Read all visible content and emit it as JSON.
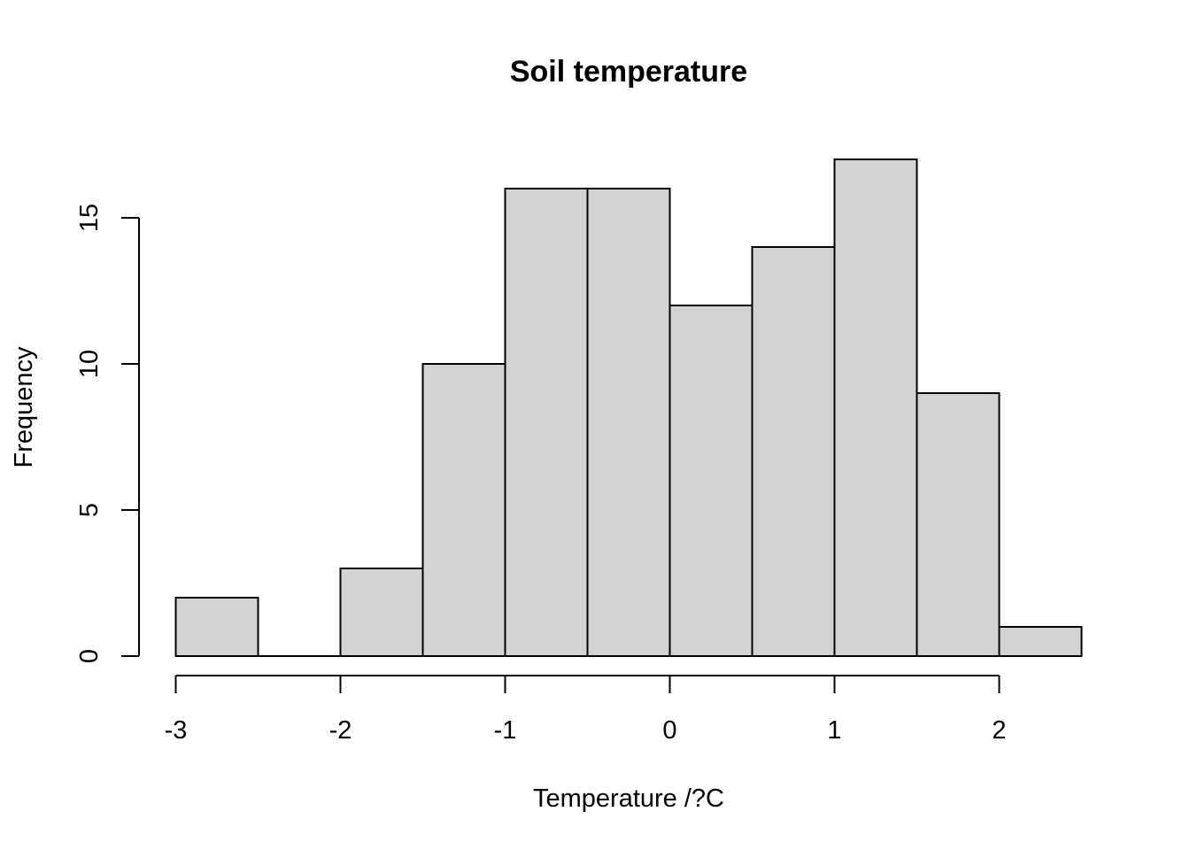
{
  "chart_data": {
    "type": "bar",
    "subtype": "histogram",
    "title": "Soil temperature",
    "xlabel": "Temperature /?C",
    "ylabel": "Frequency",
    "bins": [
      {
        "start": -3.0,
        "end": -2.5,
        "count": 2
      },
      {
        "start": -2.5,
        "end": -2.0,
        "count": 0
      },
      {
        "start": -2.0,
        "end": -1.5,
        "count": 3
      },
      {
        "start": -1.5,
        "end": -1.0,
        "count": 10
      },
      {
        "start": -1.0,
        "end": -0.5,
        "count": 16
      },
      {
        "start": -0.5,
        "end": 0.0,
        "count": 16
      },
      {
        "start": 0.0,
        "end": 0.5,
        "count": 12
      },
      {
        "start": 0.5,
        "end": 1.0,
        "count": 14
      },
      {
        "start": 1.0,
        "end": 1.5,
        "count": 17
      },
      {
        "start": 1.5,
        "end": 2.0,
        "count": 9
      },
      {
        "start": 2.0,
        "end": 2.5,
        "count": 1
      }
    ],
    "x_ticks": [
      "-3",
      "-2",
      "-1",
      "0",
      "1",
      "2"
    ],
    "y_ticks": [
      "0",
      "5",
      "10",
      "15"
    ],
    "xlim": [
      -3,
      2.5
    ],
    "ylim": [
      0,
      17
    ],
    "grid": false,
    "bar_color": "#d3d3d3",
    "edge_color": "#000000"
  }
}
